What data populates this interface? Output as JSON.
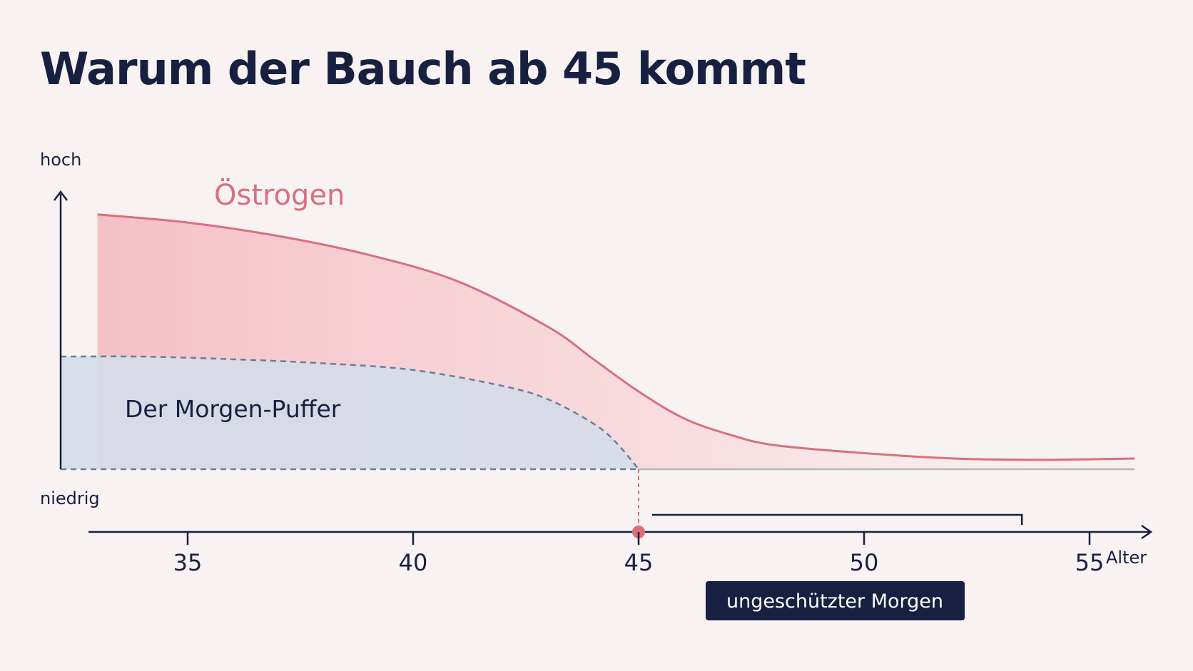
{
  "colors": {
    "background": "#f8f3f2",
    "estrogen": "#d96f7d",
    "buffer_fill": "#d5dde8",
    "buffer_line": "#6a7c9c",
    "ink": "#172041",
    "baseline": "#b8b8b8"
  },
  "chart_data": {
    "type": "area",
    "title": "Warum der Bauch ab 45 kommt",
    "y_axis": {
      "top_label": "hoch",
      "bottom_label": "niedrig"
    },
    "x_axis": {
      "label": "Alter",
      "ticks": [
        35,
        40,
        45,
        50,
        55
      ],
      "range": [
        33,
        58
      ]
    },
    "series": [
      {
        "name": "Östrogen",
        "style": "solid line with shaded area",
        "x": [
          33,
          35,
          37,
          39,
          41,
          43,
          44,
          45,
          46,
          47,
          48,
          50,
          52,
          54,
          56
        ],
        "y": [
          0.95,
          0.92,
          0.87,
          0.8,
          0.7,
          0.53,
          0.41,
          0.29,
          0.19,
          0.13,
          0.09,
          0.06,
          0.04,
          0.035,
          0.04
        ]
      },
      {
        "name": "Der Morgen-Puffer",
        "style": "dashed line with shaded area",
        "x": [
          32,
          34,
          36,
          38,
          40,
          42,
          43,
          44,
          44.5,
          45
        ],
        "y": [
          0.42,
          0.42,
          0.41,
          0.395,
          0.37,
          0.31,
          0.26,
          0.17,
          0.1,
          0.0
        ]
      }
    ],
    "annotations": {
      "marker_x": 45,
      "bracket_range": [
        45.3,
        53.5
      ],
      "bracket_label": "ungeschützter Morgen"
    }
  }
}
